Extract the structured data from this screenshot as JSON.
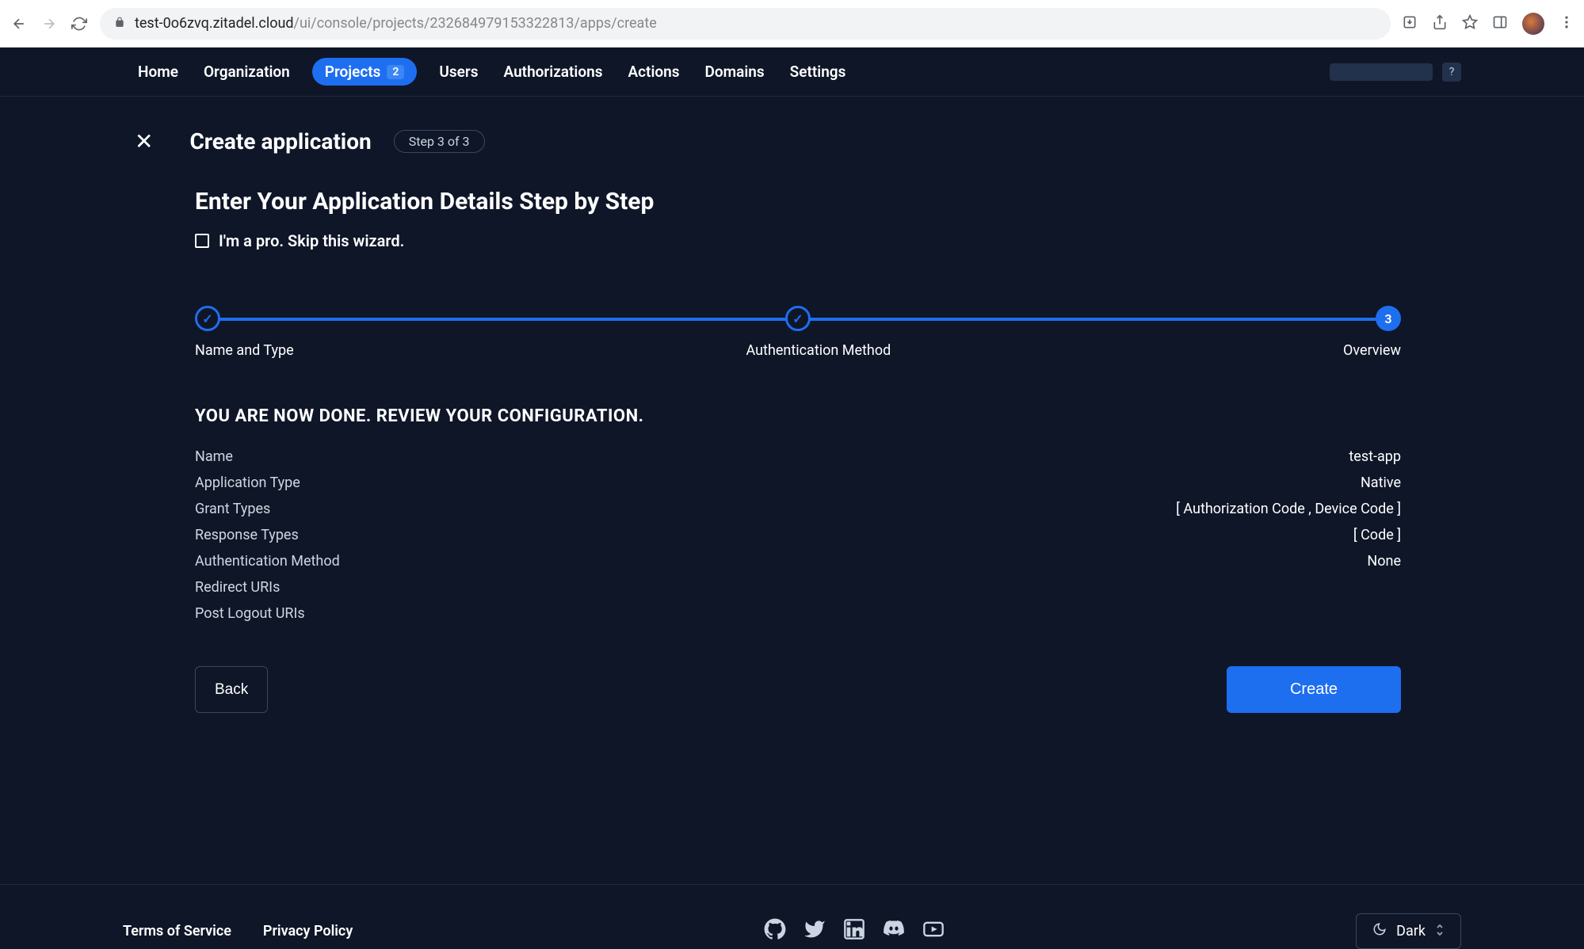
{
  "browser": {
    "url_host": "test-0o6zvq.zitadel.cloud",
    "url_path": "/ui/console/projects/232684979153322813/apps/create"
  },
  "topnav": {
    "items": [
      {
        "label": "Home"
      },
      {
        "label": "Organization"
      },
      {
        "label": "Projects",
        "badge": "2",
        "active": true
      },
      {
        "label": "Users"
      },
      {
        "label": "Authorizations"
      },
      {
        "label": "Actions"
      },
      {
        "label": "Domains"
      },
      {
        "label": "Settings"
      }
    ],
    "help_label": "?"
  },
  "header": {
    "title": "Create application",
    "step_pill": "Step 3 of 3"
  },
  "subtitle": "Enter Your Application Details Step by Step",
  "skip": {
    "label": "I'm a pro. Skip this wizard.",
    "checked": false
  },
  "stepper": {
    "current": 3,
    "steps": [
      {
        "label": "Name and Type",
        "done": true
      },
      {
        "label": "Authentication Method",
        "done": true
      },
      {
        "label": "Overview",
        "done": false
      }
    ]
  },
  "review": {
    "heading": "YOU ARE NOW DONE. REVIEW YOUR CONFIGURATION.",
    "rows": [
      {
        "label": "Name",
        "value": "test-app"
      },
      {
        "label": "Application Type",
        "value": "Native"
      },
      {
        "label": "Grant Types",
        "value": "[ Authorization Code , Device Code ]"
      },
      {
        "label": "Response Types",
        "value": "[ Code ]"
      },
      {
        "label": "Authentication Method",
        "value": "None"
      },
      {
        "label": "Redirect URIs",
        "value": ""
      },
      {
        "label": "Post Logout URIs",
        "value": ""
      }
    ]
  },
  "actions": {
    "back": "Back",
    "create": "Create"
  },
  "footer": {
    "tos": "Terms of Service",
    "privacy": "Privacy Policy",
    "theme_label": "Dark"
  },
  "colors": {
    "bg": "#0e1628",
    "accent": "#1e6ef0",
    "border": "#1c2a42"
  }
}
